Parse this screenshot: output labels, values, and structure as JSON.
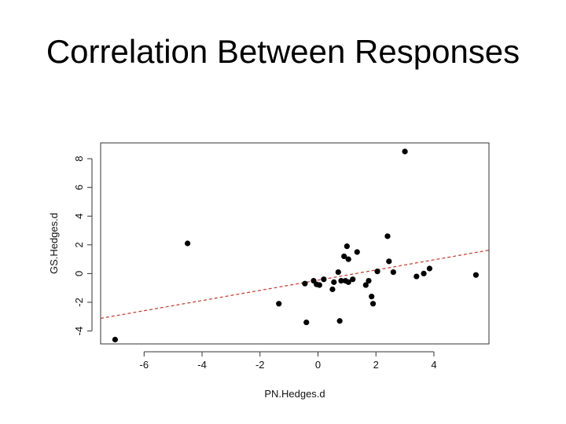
{
  "slide": {
    "title": "Correlation Between Responses"
  },
  "chart_data": {
    "type": "scatter",
    "title": "",
    "xlabel": "PN.Hedges.d",
    "ylabel": "GS.Hedges.d",
    "xlim": [
      -7.5,
      5.9
    ],
    "ylim": [
      -4.9,
      9.1
    ],
    "xticks": [
      -6,
      -4,
      -2,
      0,
      2,
      4
    ],
    "yticks": [
      -4,
      -2,
      0,
      2,
      4,
      6,
      8
    ],
    "grid": false,
    "point_color": "#000000",
    "regression_line": {
      "style": "dashed",
      "color": "#c0392b",
      "endpoints": [
        [
          -7.5,
          -3.12
        ],
        [
          5.9,
          1.63
        ]
      ]
    },
    "points": [
      {
        "x": -7.0,
        "y": -4.6
      },
      {
        "x": -4.5,
        "y": 2.1
      },
      {
        "x": -1.35,
        "y": -2.1
      },
      {
        "x": -0.45,
        "y": -0.7
      },
      {
        "x": -0.4,
        "y": -3.4
      },
      {
        "x": -0.15,
        "y": -0.5
      },
      {
        "x": -0.05,
        "y": -0.75
      },
      {
        "x": 0.05,
        "y": -0.8
      },
      {
        "x": 0.2,
        "y": -0.4
      },
      {
        "x": 0.5,
        "y": -1.1
      },
      {
        "x": 0.55,
        "y": -0.6
      },
      {
        "x": 0.7,
        "y": 0.1
      },
      {
        "x": 0.75,
        "y": -3.3
      },
      {
        "x": 0.8,
        "y": -0.5
      },
      {
        "x": 0.9,
        "y": 1.2
      },
      {
        "x": 0.95,
        "y": -0.5
      },
      {
        "x": 1.0,
        "y": 1.9
      },
      {
        "x": 1.05,
        "y": 1.0
      },
      {
        "x": 1.05,
        "y": -0.6
      },
      {
        "x": 1.2,
        "y": -0.4
      },
      {
        "x": 1.35,
        "y": 1.5
      },
      {
        "x": 1.65,
        "y": -0.8
      },
      {
        "x": 1.75,
        "y": -0.5
      },
      {
        "x": 1.85,
        "y": -1.6
      },
      {
        "x": 1.9,
        "y": -2.1
      },
      {
        "x": 2.05,
        "y": 0.15
      },
      {
        "x": 2.4,
        "y": 2.6
      },
      {
        "x": 2.45,
        "y": 0.85
      },
      {
        "x": 2.6,
        "y": 0.1
      },
      {
        "x": 3.0,
        "y": 8.5
      },
      {
        "x": 3.4,
        "y": -0.2
      },
      {
        "x": 3.65,
        "y": 0.0
      },
      {
        "x": 3.85,
        "y": 0.35
      },
      {
        "x": 5.45,
        "y": -0.1
      }
    ]
  }
}
